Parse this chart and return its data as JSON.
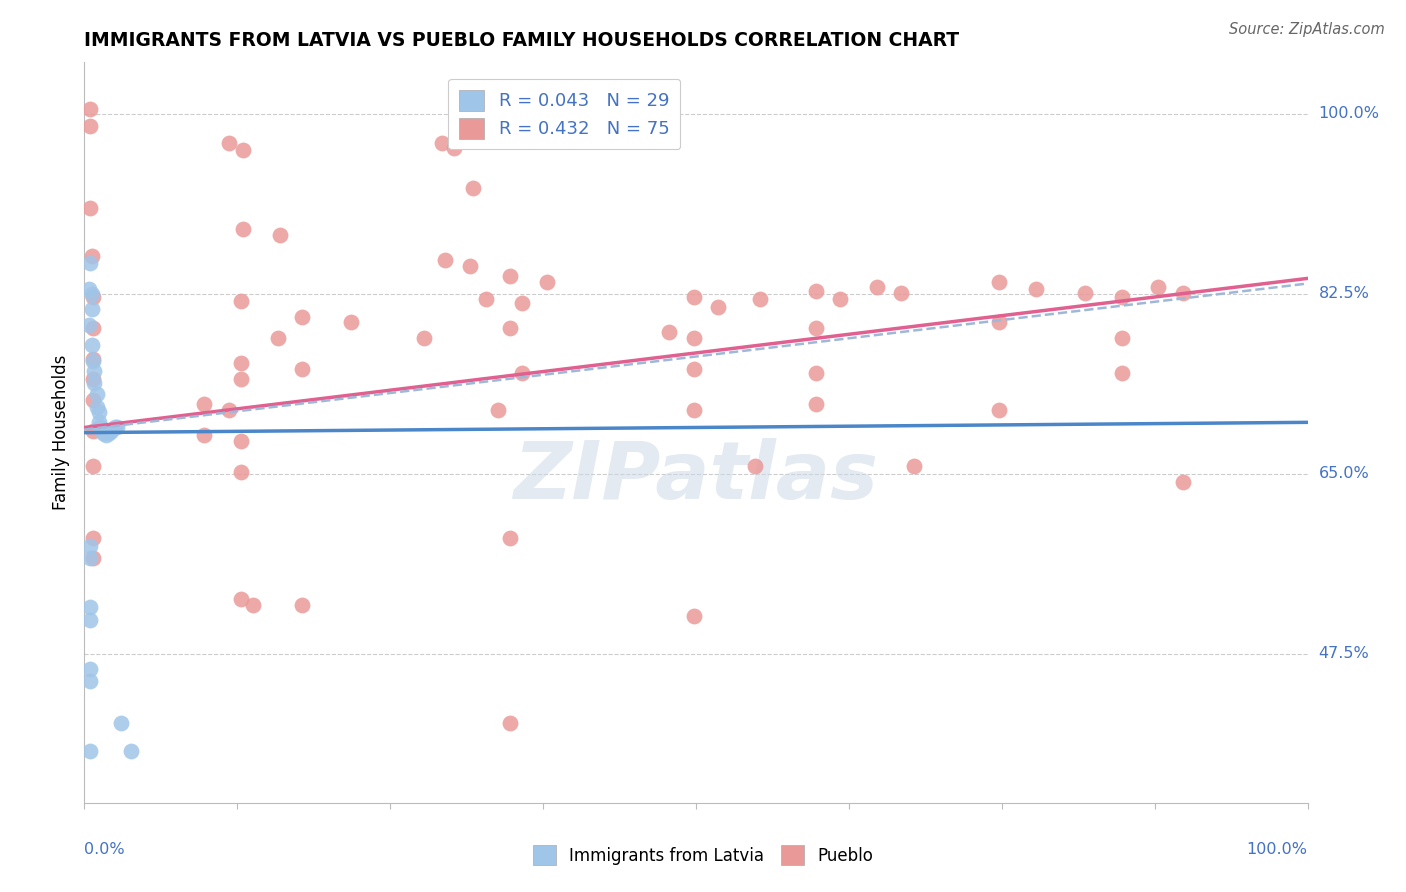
{
  "title": "IMMIGRANTS FROM LATVIA VS PUEBLO FAMILY HOUSEHOLDS CORRELATION CHART",
  "source": "Source: ZipAtlas.com",
  "ylabel": "Family Households",
  "watermark": "ZIPatlas",
  "xlim": [
    0,
    1
  ],
  "ylim": [
    0.33,
    1.05
  ],
  "yticks": [
    0.475,
    0.65,
    0.825,
    1.0
  ],
  "ytick_labels": [
    "47.5%",
    "65.0%",
    "82.5%",
    "100.0%"
  ],
  "legend_blue_r": "R = 0.043",
  "legend_blue_n": "N = 29",
  "legend_pink_r": "R = 0.432",
  "legend_pink_n": "N = 75",
  "blue_dot_color": "#9fc5e8",
  "pink_dot_color": "#ea9999",
  "blue_line_color": "#4a86c8",
  "pink_line_color": "#e06090",
  "dashed_line_color": "#a0b8d8",
  "label_color": "#4472c4",
  "text_color": "#222222",
  "blue_points": [
    [
      0.005,
      0.855
    ],
    [
      0.004,
      0.83
    ],
    [
      0.006,
      0.825
    ],
    [
      0.006,
      0.81
    ],
    [
      0.004,
      0.795
    ],
    [
      0.006,
      0.775
    ],
    [
      0.007,
      0.76
    ],
    [
      0.008,
      0.75
    ],
    [
      0.008,
      0.738
    ],
    [
      0.01,
      0.728
    ],
    [
      0.01,
      0.715
    ],
    [
      0.012,
      0.71
    ],
    [
      0.012,
      0.7
    ],
    [
      0.013,
      0.695
    ],
    [
      0.015,
      0.69
    ],
    [
      0.018,
      0.688
    ],
    [
      0.02,
      0.69
    ],
    [
      0.022,
      0.692
    ],
    [
      0.025,
      0.695
    ],
    [
      0.027,
      0.695
    ],
    [
      0.005,
      0.58
    ],
    [
      0.005,
      0.568
    ],
    [
      0.005,
      0.52
    ],
    [
      0.005,
      0.508
    ],
    [
      0.005,
      0.46
    ],
    [
      0.005,
      0.448
    ],
    [
      0.03,
      0.408
    ],
    [
      0.005,
      0.38
    ],
    [
      0.038,
      0.38
    ]
  ],
  "pink_points": [
    [
      0.005,
      1.005
    ],
    [
      0.005,
      0.988
    ],
    [
      0.118,
      0.972
    ],
    [
      0.13,
      0.965
    ],
    [
      0.292,
      0.972
    ],
    [
      0.302,
      0.967
    ],
    [
      0.318,
      0.928
    ],
    [
      0.005,
      0.908
    ],
    [
      0.13,
      0.888
    ],
    [
      0.16,
      0.882
    ],
    [
      0.006,
      0.862
    ],
    [
      0.295,
      0.858
    ],
    [
      0.315,
      0.852
    ],
    [
      0.348,
      0.842
    ],
    [
      0.378,
      0.836
    ],
    [
      0.007,
      0.822
    ],
    [
      0.128,
      0.818
    ],
    [
      0.328,
      0.82
    ],
    [
      0.358,
      0.816
    ],
    [
      0.498,
      0.822
    ],
    [
      0.518,
      0.812
    ],
    [
      0.552,
      0.82
    ],
    [
      0.598,
      0.828
    ],
    [
      0.618,
      0.82
    ],
    [
      0.648,
      0.832
    ],
    [
      0.668,
      0.826
    ],
    [
      0.748,
      0.836
    ],
    [
      0.778,
      0.83
    ],
    [
      0.818,
      0.826
    ],
    [
      0.848,
      0.822
    ],
    [
      0.878,
      0.832
    ],
    [
      0.898,
      0.826
    ],
    [
      0.178,
      0.802
    ],
    [
      0.218,
      0.798
    ],
    [
      0.007,
      0.792
    ],
    [
      0.158,
      0.782
    ],
    [
      0.278,
      0.782
    ],
    [
      0.348,
      0.792
    ],
    [
      0.478,
      0.788
    ],
    [
      0.498,
      0.782
    ],
    [
      0.598,
      0.792
    ],
    [
      0.748,
      0.798
    ],
    [
      0.848,
      0.782
    ],
    [
      0.007,
      0.762
    ],
    [
      0.128,
      0.758
    ],
    [
      0.178,
      0.752
    ],
    [
      0.007,
      0.742
    ],
    [
      0.128,
      0.742
    ],
    [
      0.358,
      0.748
    ],
    [
      0.498,
      0.752
    ],
    [
      0.598,
      0.748
    ],
    [
      0.848,
      0.748
    ],
    [
      0.007,
      0.722
    ],
    [
      0.098,
      0.718
    ],
    [
      0.118,
      0.712
    ],
    [
      0.338,
      0.712
    ],
    [
      0.498,
      0.712
    ],
    [
      0.598,
      0.718
    ],
    [
      0.748,
      0.712
    ],
    [
      0.007,
      0.692
    ],
    [
      0.098,
      0.688
    ],
    [
      0.128,
      0.682
    ],
    [
      0.007,
      0.658
    ],
    [
      0.128,
      0.652
    ],
    [
      0.548,
      0.658
    ],
    [
      0.678,
      0.658
    ],
    [
      0.898,
      0.642
    ],
    [
      0.007,
      0.588
    ],
    [
      0.348,
      0.588
    ],
    [
      0.007,
      0.568
    ],
    [
      0.128,
      0.528
    ],
    [
      0.138,
      0.522
    ],
    [
      0.178,
      0.522
    ],
    [
      0.498,
      0.512
    ],
    [
      0.348,
      0.408
    ]
  ],
  "blue_trendline_x": [
    0.0,
    1.0
  ],
  "blue_trendline_y": [
    0.69,
    0.7
  ],
  "pink_trendline_x": [
    0.0,
    1.0
  ],
  "pink_trendline_y": [
    0.695,
    0.84
  ],
  "dashed_trendline_x": [
    0.0,
    1.0
  ],
  "dashed_trendline_y": [
    0.693,
    0.835
  ]
}
